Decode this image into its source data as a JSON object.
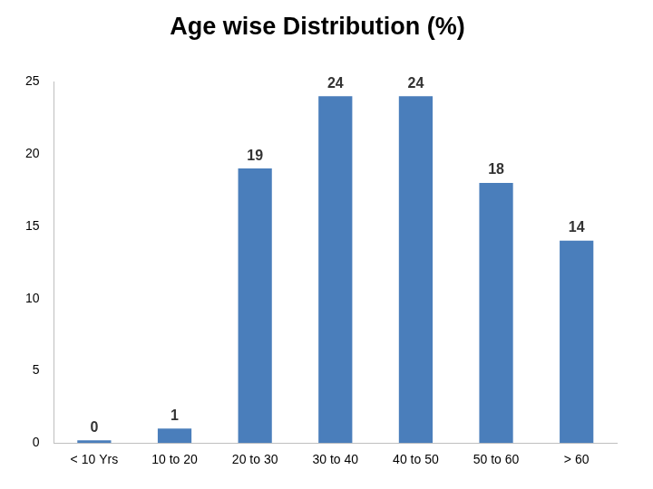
{
  "chart_data": {
    "type": "bar",
    "title": "Age wise Distribution (%)",
    "categories": [
      "< 10 Yrs",
      "10 to 20",
      "20 to 30",
      "30 to 40",
      "40 to 50",
      "50 to 60",
      "> 60"
    ],
    "values": [
      0,
      1,
      19,
      24,
      24,
      18,
      14
    ],
    "color": "#4a7ebb",
    "ylim": [
      0,
      25
    ],
    "yticks": [
      0,
      5,
      10,
      15,
      20,
      25
    ],
    "grid": false,
    "data_labels": true
  }
}
